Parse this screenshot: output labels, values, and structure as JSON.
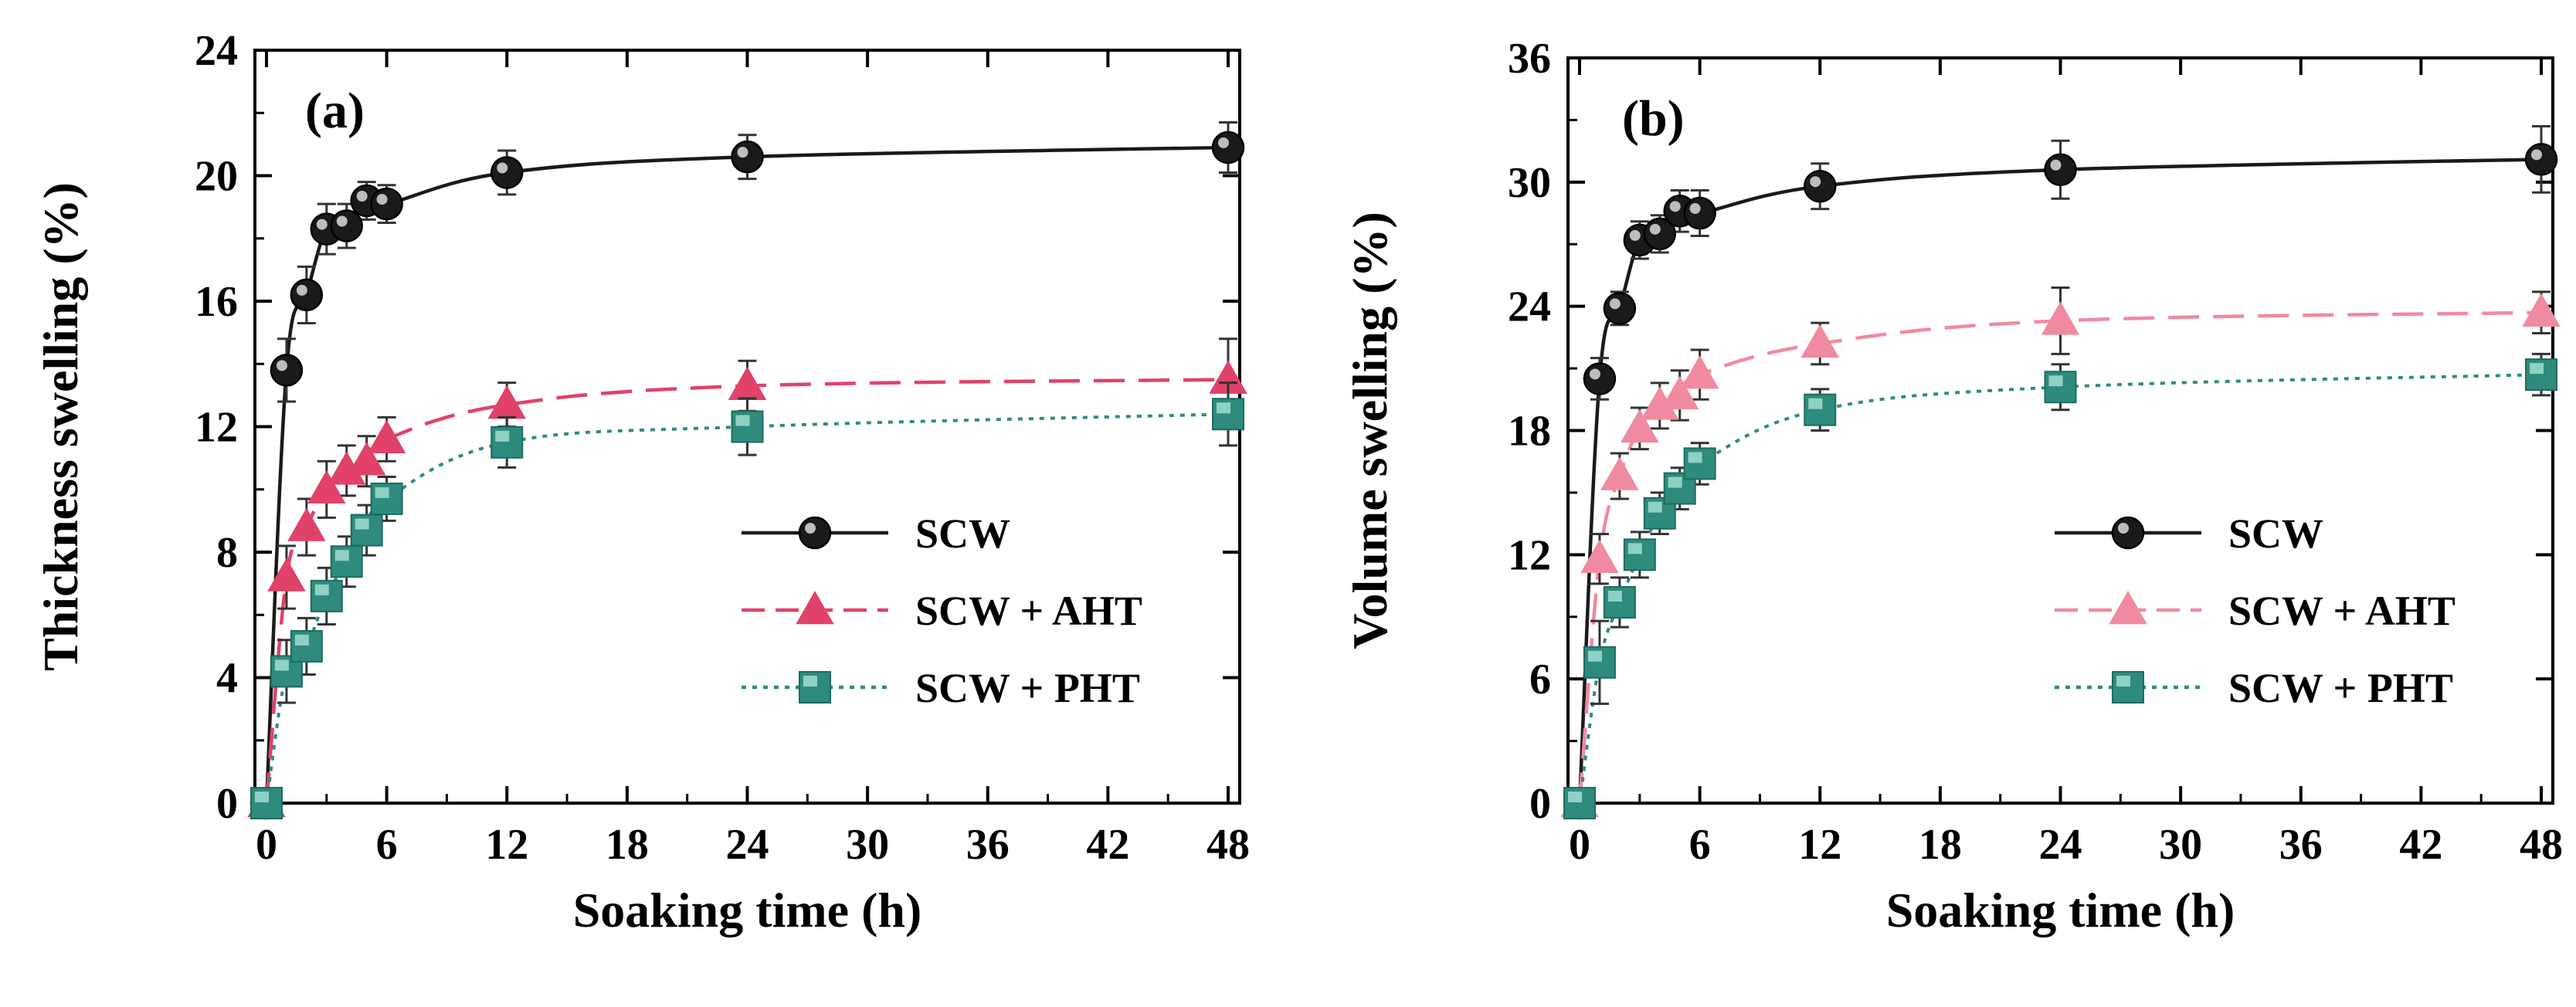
{
  "chart_data": [
    {
      "type": "line",
      "panel_label": "(a)",
      "xlabel": "Soaking time (h)",
      "ylabel": "Thickness swelling (%)",
      "xlim": [
        0,
        48
      ],
      "ylim": [
        0,
        24
      ],
      "xticks": [
        "0",
        "6",
        "12",
        "18",
        "24",
        "30",
        "36",
        "42",
        "48"
      ],
      "yticks": [
        "0",
        "4",
        "8",
        "12",
        "16",
        "20",
        "24"
      ],
      "legend_position": "center-right",
      "series": [
        {
          "name": "SCW",
          "color": "#1a1a1a",
          "marker": "circle",
          "line": "solid",
          "x": [
            0,
            1,
            2,
            3,
            4,
            5,
            6,
            12,
            24,
            48
          ],
          "y": [
            0,
            13.8,
            16.2,
            18.3,
            18.4,
            19.2,
            19.1,
            20.1,
            20.6,
            20.9
          ],
          "err": [
            0,
            1.0,
            0.9,
            0.8,
            0.7,
            0.6,
            0.6,
            0.7,
            0.7,
            0.8
          ]
        },
        {
          "name": "SCW + AHT",
          "color": "#e0426a",
          "marker": "triangle",
          "line": "dashed",
          "x": [
            0,
            1,
            2,
            3,
            4,
            5,
            6,
            12,
            24,
            48
          ],
          "y": [
            0,
            7.2,
            8.8,
            10.0,
            10.6,
            10.9,
            11.6,
            12.7,
            13.3,
            13.5
          ],
          "err": [
            0,
            1.0,
            0.9,
            0.9,
            0.8,
            0.8,
            0.7,
            0.7,
            0.8,
            1.3
          ]
        },
        {
          "name": "SCW + PHT",
          "color": "#2e8b7e",
          "marker": "square",
          "line": "dotted",
          "x": [
            0,
            1,
            2,
            3,
            4,
            5,
            6,
            12,
            24,
            48
          ],
          "y": [
            0,
            4.2,
            5.0,
            6.6,
            7.7,
            8.7,
            9.7,
            11.5,
            12.0,
            12.4
          ],
          "err": [
            0,
            1.0,
            0.9,
            0.9,
            0.8,
            0.8,
            0.7,
            0.8,
            0.9,
            1.0
          ]
        }
      ]
    },
    {
      "type": "line",
      "panel_label": "(b)",
      "xlabel": "Soaking time (h)",
      "ylabel": "Volume swelling (%)",
      "xlim": [
        0,
        48
      ],
      "ylim": [
        0,
        36
      ],
      "xticks": [
        "0",
        "6",
        "12",
        "18",
        "24",
        "30",
        "36",
        "42",
        "48"
      ],
      "yticks": [
        "0",
        "6",
        "12",
        "18",
        "24",
        "30",
        "36"
      ],
      "legend_position": "center-right",
      "series": [
        {
          "name": "SCW",
          "color": "#1a1a1a",
          "marker": "circle",
          "line": "solid",
          "x": [
            0,
            1,
            2,
            3,
            4,
            5,
            6,
            12,
            24,
            48
          ],
          "y": [
            0,
            20.5,
            23.9,
            27.2,
            27.5,
            28.6,
            28.5,
            29.8,
            30.6,
            31.1
          ],
          "err": [
            0,
            1.0,
            0.8,
            0.9,
            0.9,
            1.0,
            1.1,
            1.1,
            1.4,
            1.6
          ]
        },
        {
          "name": "SCW + AHT",
          "color": "#f08aa0",
          "marker": "triangle",
          "line": "dashed",
          "x": [
            0,
            1,
            2,
            3,
            4,
            5,
            6,
            12,
            24,
            48
          ],
          "y": [
            0,
            11.8,
            15.8,
            18.1,
            19.2,
            19.7,
            20.7,
            22.2,
            23.3,
            23.7
          ],
          "err": [
            0,
            1.2,
            1.1,
            1.0,
            1.1,
            1.2,
            1.2,
            1.0,
            1.6,
            1.0
          ]
        },
        {
          "name": "SCW + PHT",
          "color": "#2e8b7e",
          "marker": "square",
          "line": "dotted",
          "x": [
            0,
            1,
            2,
            3,
            4,
            5,
            6,
            12,
            24,
            48
          ],
          "y": [
            0,
            6.8,
            9.7,
            12.0,
            14.0,
            15.2,
            16.4,
            19.0,
            20.1,
            20.7
          ],
          "err": [
            0,
            2.0,
            1.2,
            1.1,
            1.0,
            1.0,
            1.0,
            1.0,
            1.1,
            1.0
          ]
        }
      ]
    }
  ]
}
